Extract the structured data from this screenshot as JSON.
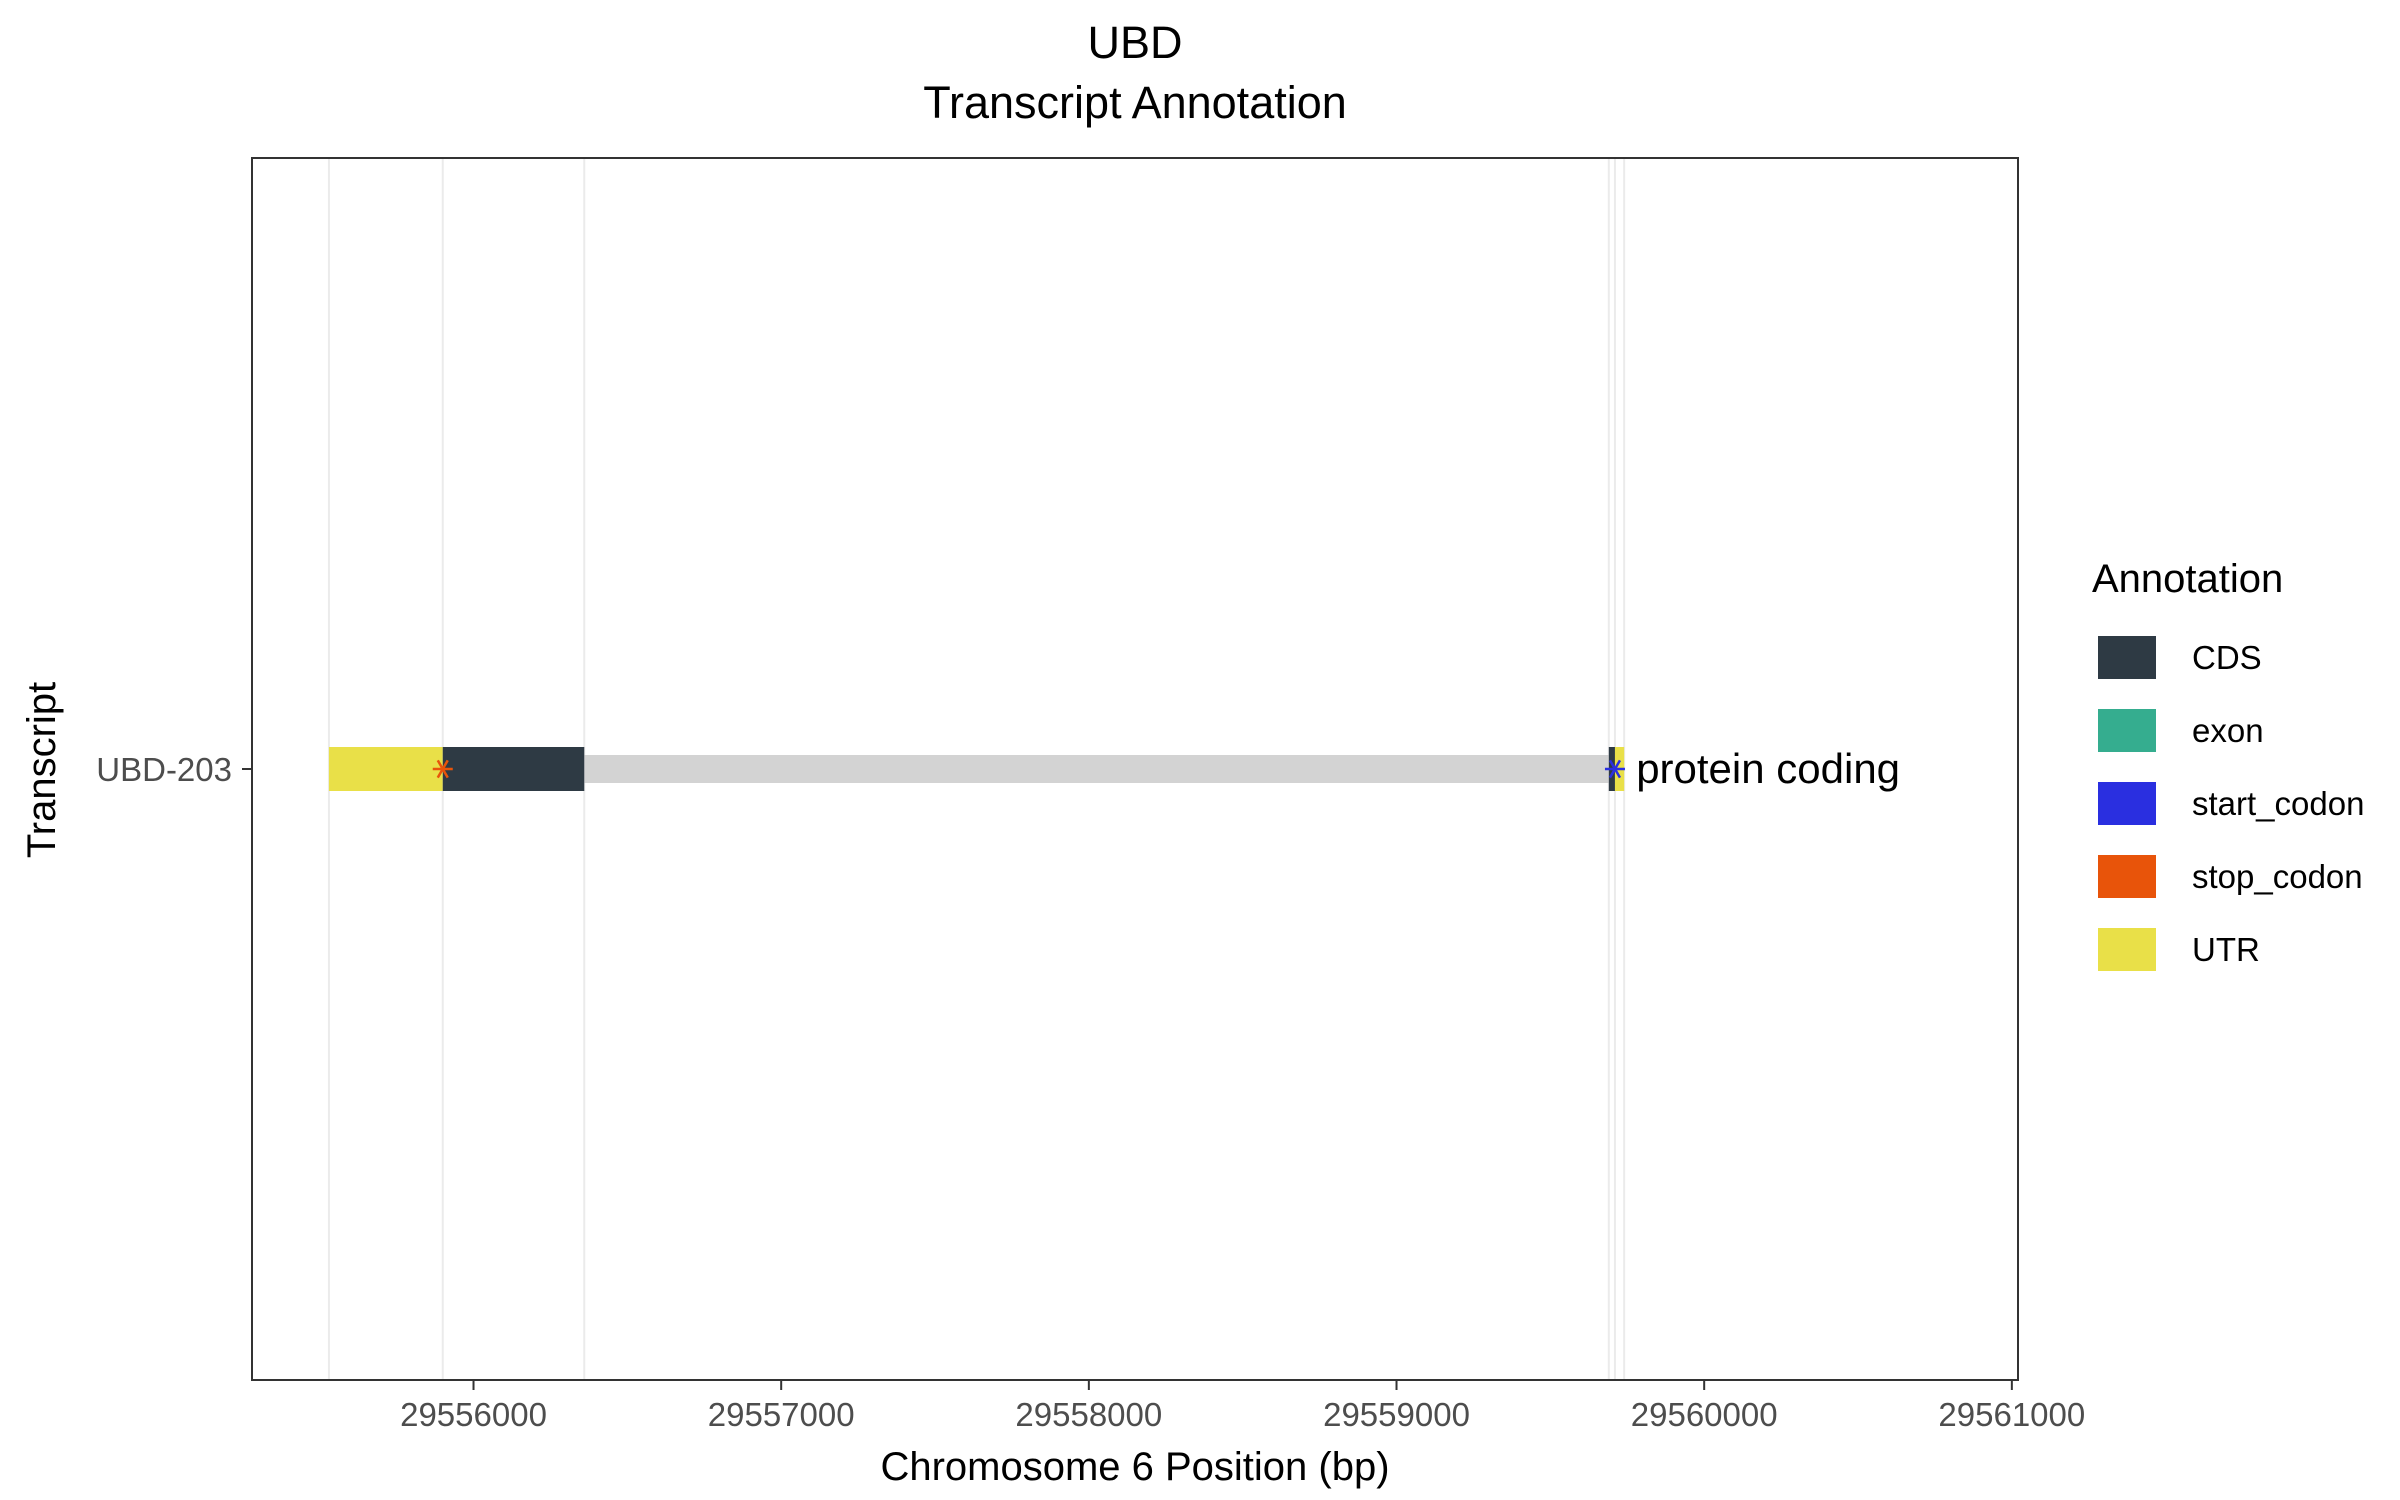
{
  "chart_data": {
    "type": "gene-track",
    "title": "UBD",
    "subtitle": "Transcript Annotation",
    "xlabel": "Chromosome 6 Position (bp)",
    "ylabel": "Transcript",
    "xlim": [
      29555280,
      29561020
    ],
    "xticks": [
      29556000,
      29557000,
      29558000,
      29559000,
      29560000,
      29561000
    ],
    "tick_labels": [
      "29556000",
      "29557000",
      "29558000",
      "29559000",
      "29560000",
      "29561000"
    ],
    "grid_lines": [
      29555530,
      29555900,
      29556360,
      29559690,
      29559710,
      29559740
    ],
    "transcripts": [
      {
        "name": "UBD-203",
        "biotype": "protein coding",
        "intron": [
          29556360,
          29559690
        ],
        "features": [
          {
            "type": "UTR",
            "start": 29555530,
            "end": 29555900
          },
          {
            "type": "CDS",
            "start": 29555900,
            "end": 29556360
          },
          {
            "type": "CDS",
            "start": 29559690,
            "end": 29559710
          },
          {
            "type": "UTR",
            "start": 29559710,
            "end": 29559740
          }
        ],
        "codons": [
          {
            "type": "stop_codon",
            "position": 29555900
          },
          {
            "type": "start_codon",
            "position": 29559710
          }
        ]
      }
    ],
    "legend": {
      "title": "Annotation",
      "placement": "right",
      "items": [
        {
          "label": "CDS",
          "color": "#2e3a44"
        },
        {
          "label": "exon",
          "color": "#35ad8f"
        },
        {
          "label": "start_codon",
          "color": "#2a2fe0"
        },
        {
          "label": "stop_codon",
          "color": "#e8540a"
        },
        {
          "label": "UTR",
          "color": "#e9e048"
        }
      ]
    },
    "intron_color": "#d3d3d3",
    "grid": true
  }
}
